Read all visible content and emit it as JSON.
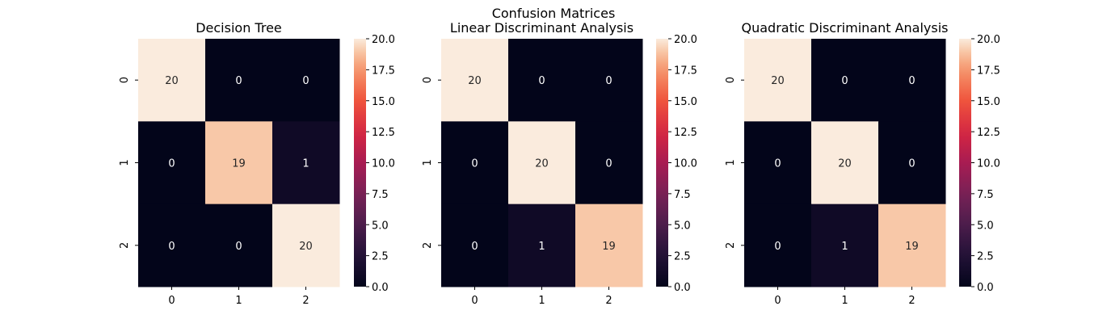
{
  "figure": {
    "suptitle": "Confusion Matrices"
  },
  "chart_data": [
    {
      "type": "heatmap",
      "title": "Decision Tree",
      "x_categories": [
        "0",
        "1",
        "2"
      ],
      "y_categories": [
        "0",
        "1",
        "2"
      ],
      "matrix": [
        [
          20,
          0,
          0
        ],
        [
          0,
          19,
          1
        ],
        [
          0,
          0,
          20
        ]
      ],
      "vmin": 0,
      "vmax": 20,
      "colormap": "rocket",
      "colorbar_ticks": [
        "0.0",
        "2.5",
        "5.0",
        "7.5",
        "10.0",
        "12.5",
        "15.0",
        "17.5",
        "20.0"
      ]
    },
    {
      "type": "heatmap",
      "title": "Linear Discriminant Analysis",
      "x_categories": [
        "0",
        "1",
        "2"
      ],
      "y_categories": [
        "0",
        "1",
        "2"
      ],
      "matrix": [
        [
          20,
          0,
          0
        ],
        [
          0,
          20,
          0
        ],
        [
          0,
          1,
          19
        ]
      ],
      "vmin": 0,
      "vmax": 20,
      "colormap": "rocket",
      "colorbar_ticks": [
        "0.0",
        "2.5",
        "5.0",
        "7.5",
        "10.0",
        "12.5",
        "15.0",
        "17.5",
        "20.0"
      ]
    },
    {
      "type": "heatmap",
      "title": "Quadratic Discriminant Analysis",
      "x_categories": [
        "0",
        "1",
        "2"
      ],
      "y_categories": [
        "0",
        "1",
        "2"
      ],
      "matrix": [
        [
          20,
          0,
          0
        ],
        [
          0,
          20,
          0
        ],
        [
          0,
          1,
          19
        ]
      ],
      "vmin": 0,
      "vmax": 20,
      "colormap": "rocket",
      "colorbar_ticks": [
        "0.0",
        "2.5",
        "5.0",
        "7.5",
        "10.0",
        "12.5",
        "15.0",
        "17.5",
        "20.0"
      ]
    }
  ]
}
